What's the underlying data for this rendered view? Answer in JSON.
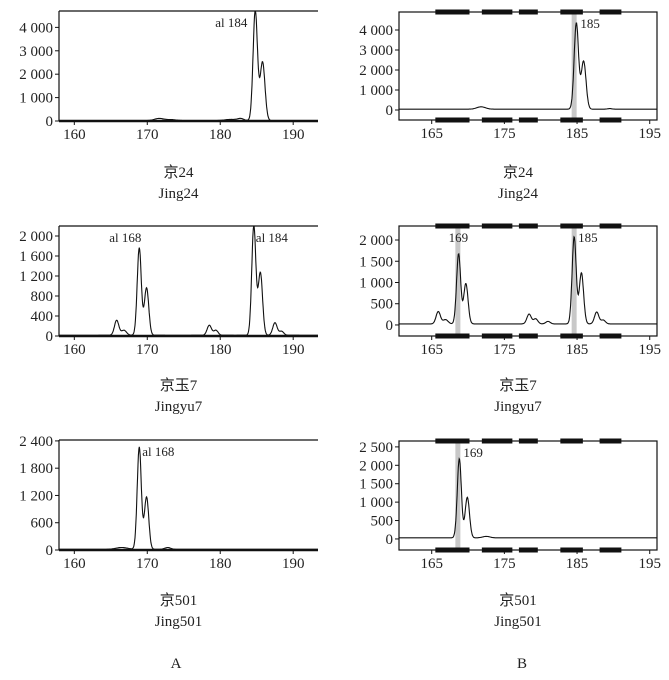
{
  "panel_labels": {
    "left": "A",
    "right": "B"
  },
  "chart_data": [
    {
      "type": "line",
      "panel": "A-1",
      "caption_cn": "京24",
      "caption_en": "Jing24",
      "xlim": [
        157.9,
        193.4
      ],
      "ylim": [
        0,
        4700
      ],
      "xticks": [
        160,
        170,
        180,
        190
      ],
      "yticks": [
        0,
        1000,
        2000,
        3000,
        4000
      ],
      "ytick_labels": [
        "0",
        "1 000",
        "2 000",
        "3 000",
        "4 000"
      ],
      "baseline": 20,
      "peaks": [
        [
          171.6,
          90,
          0.6
        ],
        [
          173.2,
          40,
          0.7
        ],
        [
          181.5,
          50,
          0.8
        ],
        [
          182.8,
          80,
          0.4
        ],
        [
          184.8,
          4700,
          0.3
        ],
        [
          185.8,
          2500,
          0.33
        ]
      ],
      "annotations": [
        {
          "text": "al 184",
          "x": 184.8
        }
      ],
      "highlights": [],
      "bins": []
    },
    {
      "type": "line",
      "panel": "B-1",
      "caption_cn": "京24",
      "caption_en": "Jing24",
      "xlim": [
        160.5,
        196
      ],
      "ylim": [
        -500,
        4900
      ],
      "xticks": [
        165,
        175,
        185,
        195
      ],
      "yticks": [
        0,
        1000,
        2000,
        3000,
        4000
      ],
      "ytick_labels": [
        "0",
        "1 000",
        "2 000",
        "3 000",
        "4 000"
      ],
      "baseline": 40,
      "peaks": [
        [
          171.8,
          120,
          0.6
        ],
        [
          184.9,
          4300,
          0.3
        ],
        [
          185.9,
          2400,
          0.33
        ],
        [
          189.5,
          30,
          0.3
        ]
      ],
      "annotations": [
        {
          "text": "185",
          "x": 184.9
        }
      ],
      "highlights": [
        184.6
      ],
      "bins": [
        [
          165.5,
          170.2
        ],
        [
          171.9,
          176.1
        ],
        [
          177,
          179.6
        ],
        [
          182.7,
          185.8
        ],
        [
          188.1,
          191.1
        ]
      ]
    },
    {
      "type": "line",
      "panel": "A-2",
      "caption_cn": "京玉7",
      "caption_en": "Jingyu7",
      "xlim": [
        157.9,
        193.4
      ],
      "ylim": [
        0,
        2200
      ],
      "xticks": [
        160,
        170,
        180,
        190
      ],
      "yticks": [
        0,
        400,
        800,
        1200,
        1600,
        2000
      ],
      "ytick_labels": [
        "0",
        "400",
        "800",
        "1 200",
        "1 600",
        "2 000"
      ],
      "baseline": 15,
      "peaks": [
        [
          165.8,
          300,
          0.3
        ],
        [
          166.8,
          100,
          0.35
        ],
        [
          168.9,
          1750,
          0.28
        ],
        [
          169.9,
          950,
          0.3
        ],
        [
          178.5,
          200,
          0.3
        ],
        [
          179.4,
          100,
          0.3
        ],
        [
          184.6,
          2200,
          0.28
        ],
        [
          185.5,
          1250,
          0.3
        ],
        [
          187.5,
          250,
          0.3
        ],
        [
          188.4,
          80,
          0.3
        ]
      ],
      "annotations": [
        {
          "text": "al 168",
          "x": 168.9
        },
        {
          "text": "al 184",
          "x": 184.6
        }
      ],
      "highlights": [],
      "bins": []
    },
    {
      "type": "line",
      "panel": "B-2",
      "caption_cn": "京玉7",
      "caption_en": "Jingyu7",
      "xlim": [
        160.5,
        196
      ],
      "ylim": [
        -260,
        2330
      ],
      "xticks": [
        165,
        175,
        185,
        195
      ],
      "yticks": [
        0,
        500,
        1000,
        1500,
        2000
      ],
      "ytick_labels": [
        "0",
        "500",
        "1 000",
        "1 500",
        "2 000"
      ],
      "baseline": 25,
      "peaks": [
        [
          165.9,
          290,
          0.3
        ],
        [
          166.9,
          100,
          0.35
        ],
        [
          168.7,
          1650,
          0.28
        ],
        [
          169.7,
          950,
          0.3
        ],
        [
          178.4,
          230,
          0.3
        ],
        [
          179.3,
          120,
          0.3
        ],
        [
          181,
          60,
          0.3
        ],
        [
          184.6,
          2050,
          0.28
        ],
        [
          185.6,
          1200,
          0.3
        ],
        [
          187.7,
          280,
          0.3
        ],
        [
          188.6,
          90,
          0.3
        ]
      ],
      "annotations": [
        {
          "text": "169",
          "x": 168.7
        },
        {
          "text": "185",
          "x": 184.6
        }
      ],
      "highlights": [
        168.6,
        184.6
      ],
      "bins": [
        [
          165.5,
          170.2
        ],
        [
          171.9,
          176.1
        ],
        [
          177,
          179.6
        ],
        [
          182.7,
          185.8
        ],
        [
          188.1,
          191.1
        ]
      ]
    },
    {
      "type": "line",
      "panel": "A-3",
      "caption_cn": "京501",
      "caption_en": "Jing501",
      "xlim": [
        157.9,
        193.4
      ],
      "ylim": [
        0,
        2420
      ],
      "xticks": [
        160,
        170,
        180,
        190
      ],
      "yticks": [
        0,
        600,
        1200,
        1800,
        2400
      ],
      "ytick_labels": [
        "0",
        "600",
        "1 200",
        "1 800",
        "2 400"
      ],
      "baseline": 15,
      "peaks": [
        [
          166.5,
          40,
          0.8
        ],
        [
          168.9,
          2250,
          0.28
        ],
        [
          169.9,
          1150,
          0.3
        ],
        [
          172.8,
          40,
          0.4
        ]
      ],
      "annotations": [
        {
          "text": "al 168",
          "x": 168.9
        }
      ],
      "highlights": [],
      "bins": []
    },
    {
      "type": "line",
      "panel": "B-3",
      "caption_cn": "京501",
      "caption_en": "Jing501",
      "xlim": [
        160.5,
        196
      ],
      "ylim": [
        -300,
        2660
      ],
      "xticks": [
        165,
        175,
        185,
        195
      ],
      "yticks": [
        0,
        500,
        1000,
        1500,
        2000,
        2500
      ],
      "ytick_labels": [
        "0",
        "500",
        "1 000",
        "1 500",
        "2 000",
        "2 500"
      ],
      "baseline": 30,
      "peaks": [
        [
          168.8,
          2150,
          0.28
        ],
        [
          169.9,
          1100,
          0.3
        ],
        [
          172.5,
          40,
          0.5
        ]
      ],
      "annotations": [
        {
          "text": "169",
          "x": 168.8
        }
      ],
      "highlights": [
        168.6
      ],
      "bins": [
        [
          165.5,
          170.2
        ],
        [
          171.9,
          176.1
        ],
        [
          177,
          179.6
        ],
        [
          182.7,
          185.8
        ],
        [
          188.1,
          191.1
        ]
      ]
    }
  ]
}
